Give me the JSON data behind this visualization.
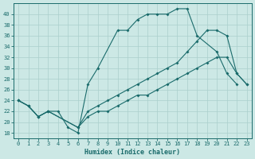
{
  "xlabel": "Humidex (Indice chaleur)",
  "bg_color": "#cce8e5",
  "line_color": "#1a6b6b",
  "grid_color": "#aacfcc",
  "xlim": [
    -0.5,
    23.5
  ],
  "ylim": [
    17,
    42
  ],
  "xticks": [
    0,
    1,
    2,
    3,
    4,
    5,
    6,
    7,
    8,
    9,
    10,
    11,
    12,
    13,
    14,
    15,
    16,
    17,
    18,
    19,
    20,
    21,
    22,
    23
  ],
  "yticks": [
    18,
    20,
    22,
    24,
    26,
    28,
    30,
    32,
    34,
    36,
    38,
    40
  ],
  "series": [
    {
      "x": [
        0,
        1,
        2,
        3,
        4,
        5,
        6,
        7,
        8,
        10,
        11,
        12,
        13,
        14,
        15,
        16,
        17,
        18,
        20,
        21,
        22
      ],
      "y": [
        24,
        23,
        21,
        22,
        22,
        19,
        18,
        27,
        30,
        37,
        37,
        39,
        40,
        40,
        40,
        41,
        41,
        36,
        33,
        29,
        27
      ]
    },
    {
      "x": [
        0,
        1,
        2,
        3,
        6,
        7,
        8,
        9,
        10,
        11,
        12,
        13,
        14,
        15,
        16,
        17,
        18,
        19,
        20,
        21,
        22,
        23
      ],
      "y": [
        24,
        23,
        21,
        22,
        19,
        22,
        23,
        24,
        25,
        26,
        27,
        28,
        29,
        30,
        31,
        33,
        35,
        37,
        37,
        36,
        29,
        27
      ]
    },
    {
      "x": [
        0,
        1,
        2,
        3,
        6,
        7,
        8,
        9,
        10,
        11,
        12,
        13,
        14,
        15,
        16,
        17,
        18,
        19,
        20,
        21,
        22,
        23
      ],
      "y": [
        24,
        23,
        21,
        22,
        19,
        21,
        22,
        22,
        23,
        24,
        25,
        25,
        26,
        27,
        28,
        29,
        30,
        31,
        32,
        32,
        29,
        27
      ]
    }
  ]
}
